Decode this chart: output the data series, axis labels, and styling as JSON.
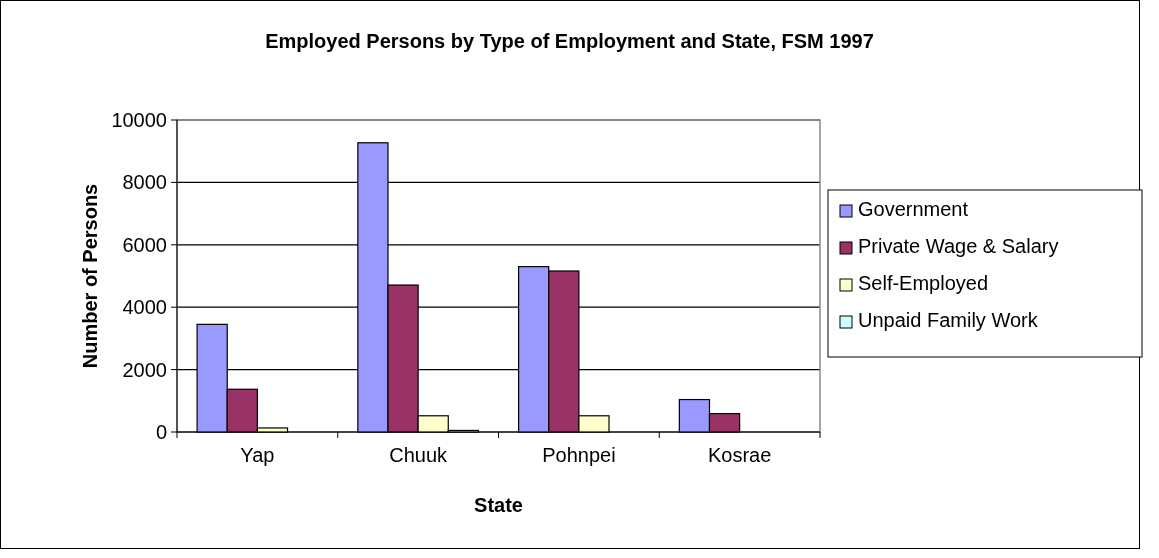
{
  "chart_data": {
    "type": "bar",
    "title": "Employed Persons by Type of Employment and State, FSM 1997",
    "xlabel": "State",
    "ylabel": "Number of Persons",
    "categories": [
      "Yap",
      "Chuuk",
      "Pohnpei",
      "Kosrae"
    ],
    "series": [
      {
        "name": "Government",
        "color": "#9999ff",
        "values": [
          3450,
          9270,
          5300,
          1040
        ]
      },
      {
        "name": "Private Wage & Salary",
        "color": "#993366",
        "values": [
          1370,
          4710,
          5160,
          590
        ]
      },
      {
        "name": "Self-Employed",
        "color": "#ffffcc",
        "values": [
          130,
          520,
          520,
          0
        ]
      },
      {
        "name": "Unpaid Family Work",
        "color": "#ccffff",
        "values": [
          0,
          50,
          0,
          0
        ]
      }
    ],
    "ylim": [
      0,
      10000
    ],
    "yticks": [
      0,
      2000,
      4000,
      6000,
      8000,
      10000
    ],
    "grid": "y",
    "legend": "right"
  }
}
